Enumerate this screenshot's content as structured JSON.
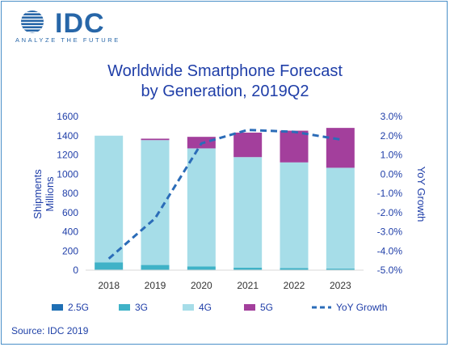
{
  "logo": {
    "wordmark": "IDC",
    "tagline": "ANALYZE THE FUTURE"
  },
  "title_line1": "Worldwide Smartphone Forecast",
  "title_line2": "by Generation, 2019Q2",
  "source": "Source: IDC 2019",
  "colors": {
    "2.5G": "#1f6fb4",
    "3G": "#3fb2c7",
    "4G": "#a6dde8",
    "5G": "#a33f9c",
    "YoY Growth": "#2b6cb8",
    "text": "#1f3ea8",
    "frame": "#4a8fc8"
  },
  "chart_data": {
    "type": "bar",
    "stacked": true,
    "categories": [
      "2018",
      "2019",
      "2020",
      "2021",
      "2022",
      "2023"
    ],
    "ylabel": "Shipments Millions",
    "y2label": "YoY Growth",
    "ylim": [
      0,
      1600
    ],
    "yticks": [
      "0",
      "200",
      "400",
      "600",
      "800",
      "1000",
      "1200",
      "1400",
      "1600"
    ],
    "y2lim": [
      -5.0,
      3.0
    ],
    "y2ticks": [
      "-5.0%",
      "-4.0%",
      "-3.0%",
      "-2.0%",
      "-1.0%",
      "0.0%",
      "1.0%",
      "2.0%",
      "3.0%"
    ],
    "series": [
      {
        "name": "2.5G",
        "values": [
          5,
          4,
          3,
          2,
          2,
          1
        ]
      },
      {
        "name": "3G",
        "values": [
          75,
          50,
          35,
          25,
          20,
          15
        ]
      },
      {
        "name": "4G",
        "values": [
          1320,
          1300,
          1230,
          1150,
          1100,
          1050
        ]
      },
      {
        "name": "5G",
        "values": [
          0,
          15,
          120,
          255,
          330,
          415
        ]
      }
    ],
    "line": {
      "name": "YoY Growth",
      "axis": "right",
      "style": "dashed",
      "values": [
        -4.4,
        -2.3,
        1.6,
        2.3,
        2.2,
        1.8
      ]
    },
    "legend": [
      "2.5G",
      "3G",
      "4G",
      "5G",
      "YoY Growth"
    ],
    "legend_position": "bottom",
    "grid": false
  }
}
